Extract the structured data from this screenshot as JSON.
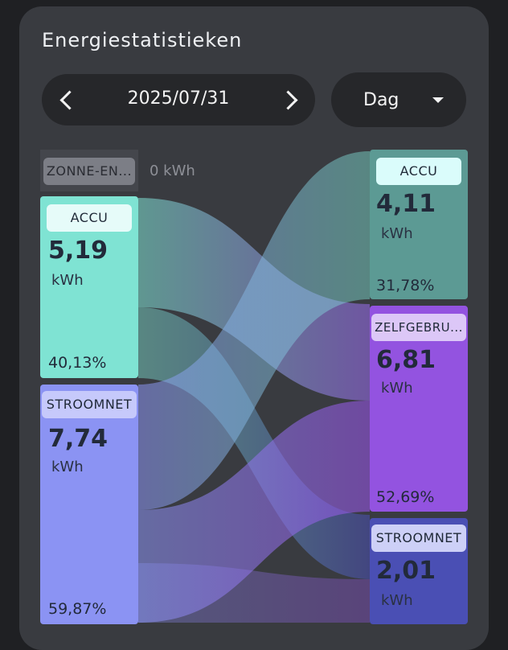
{
  "header": {
    "title": "Energiestatistieken",
    "date": "2025/07/31",
    "period": "Dag"
  },
  "sources": {
    "solar": {
      "label": "ZONNE-EN...",
      "value": "0 kWh"
    },
    "battery": {
      "label": "ACCU",
      "value": "5,19",
      "unit": "kWh",
      "percent": "40,13%"
    },
    "grid": {
      "label": "STROOMNET",
      "value": "7,74",
      "unit": "kWh",
      "percent": "59,87%"
    }
  },
  "destinations": {
    "battery": {
      "label": "ACCU",
      "value": "4,11",
      "unit": "kWh",
      "percent": "31,78%"
    },
    "self_use": {
      "label": "ZELFGEBRU...",
      "value": "6,81",
      "unit": "kWh",
      "percent": "52,69%"
    },
    "grid": {
      "label": "STROOMNET",
      "value": "2,01",
      "unit": "kWh"
    }
  },
  "colors": {
    "battery": "#7fe3d3",
    "grid_source": "#8b93f3",
    "battery_dest": "#5c9a94",
    "self_use": "#9353e0",
    "grid_dest": "#4a4fb4"
  }
}
